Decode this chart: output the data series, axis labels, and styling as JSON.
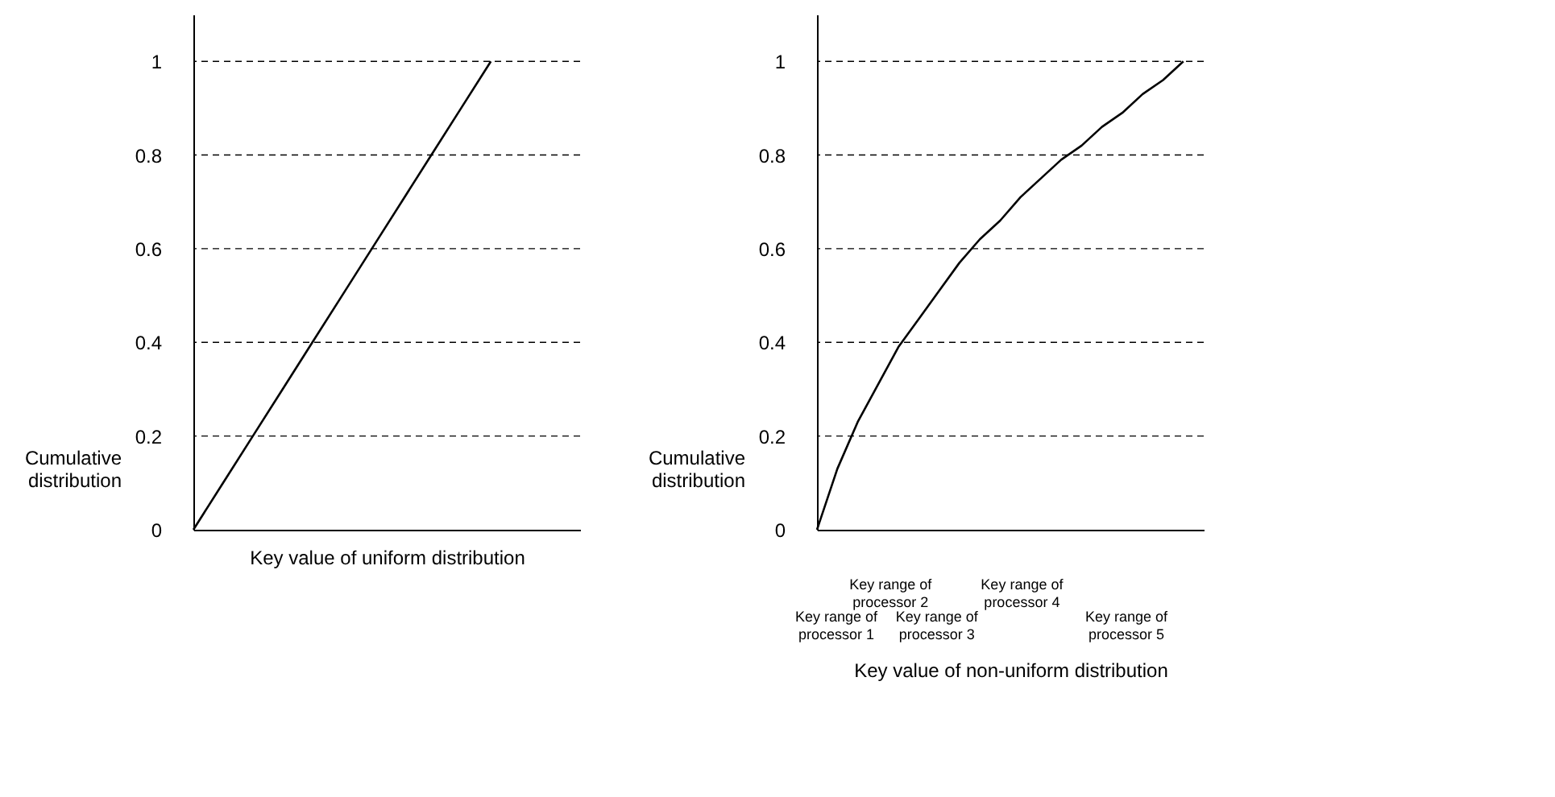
{
  "chart_data": [
    {
      "type": "line",
      "categories": [
        null,
        null,
        null,
        null,
        null,
        null,
        null,
        null,
        null,
        null,
        null,
        null,
        null,
        null
      ],
      "series": [
        {
          "color": "#000000",
          "values": [
            0,
            0.1,
            0.2,
            0.3,
            0.4,
            0.5,
            0.6,
            0.7,
            0.8,
            0.9,
            1.0,
            null,
            null,
            null
          ]
        }
      ],
      "ylim": [
        0,
        1.1
      ],
      "yticks": [
        0,
        0.2,
        0.4,
        0.6,
        0.8,
        1
      ],
      "tick_labels": "y",
      "ylabel": "Cumulative distribution",
      "xlabel": "Key value of uniform distribution",
      "ref_lines": [
        {
          "axis": "y",
          "value": 0.2,
          "line_style": "dashed"
        },
        {
          "axis": "y",
          "value": 0.4,
          "line_style": "dashed"
        },
        {
          "axis": "y",
          "value": 0.6,
          "line_style": "dashed"
        },
        {
          "axis": "y",
          "value": 0.8,
          "line_style": "dashed"
        },
        {
          "axis": "y",
          "value": 1,
          "line_style": "dashed"
        }
      ]
    },
    {
      "type": "line",
      "categories": [
        null,
        null,
        null,
        null,
        null,
        null,
        null,
        null,
        null,
        null,
        null,
        null,
        null,
        null,
        null,
        null,
        null,
        null,
        null,
        null
      ],
      "series": [
        {
          "color": "#000000",
          "values": [
            0,
            0.13,
            0.23,
            0.31,
            0.39,
            0.45,
            0.51,
            0.57,
            0.62,
            0.66,
            0.71,
            0.75,
            0.79,
            0.82,
            0.86,
            0.89,
            0.93,
            0.96,
            1.0,
            null
          ]
        }
      ],
      "ylim": [
        0,
        1.1
      ],
      "yticks": [
        0,
        0.2,
        0.4,
        0.6,
        0.8,
        1
      ],
      "tick_labels": "y",
      "ylabel": "Cumulative distribution",
      "xlabel": "Key value of non-uniform distribution",
      "ref_lines": [
        {
          "axis": "y",
          "value": 0.2,
          "line_style": "dashed"
        },
        {
          "axis": "y",
          "value": 0.4,
          "line_style": "dashed"
        },
        {
          "axis": "y",
          "value": 0.6,
          "line_style": "dashed"
        },
        {
          "axis": "y",
          "value": 0.8,
          "line_style": "dashed"
        },
        {
          "axis": "y",
          "value": 1,
          "line_style": "dashed"
        }
      ],
      "annotations": [
        "Key range of processor 1",
        "Key range of processor 2",
        "Key range of processor 3",
        "Key range of processor 4",
        "Key range of processor 5"
      ]
    }
  ]
}
